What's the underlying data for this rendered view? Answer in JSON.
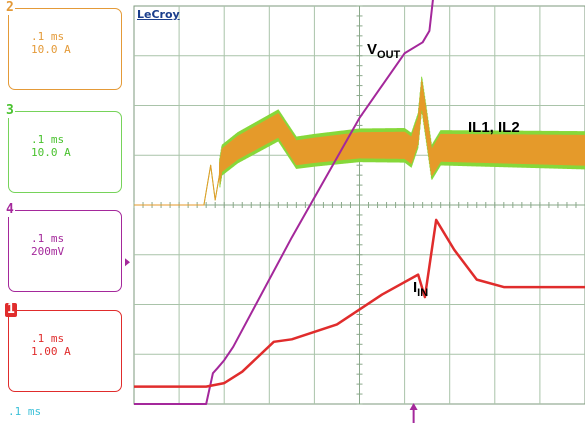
{
  "brand": "LeCroy",
  "channels": [
    {
      "id": "ch2",
      "number": "2",
      "timebase": ".1 ms",
      "scale": "10.0 A",
      "color": "#e49a38"
    },
    {
      "id": "ch3",
      "number": "3",
      "timebase": ".1 ms",
      "scale": "10.0 A",
      "color": "#76d35a"
    },
    {
      "id": "ch4",
      "number": "4",
      "timebase": ".1 ms",
      "scale": "200mV",
      "color": "#a4289b"
    },
    {
      "id": "ch1",
      "number": "1",
      "timebase": ".1 ms",
      "scale": "1.00 A",
      "color": "#e02c2c"
    }
  ],
  "bottom_timebase": ".1 ms",
  "chart_data": {
    "type": "line",
    "title": "",
    "grid": true,
    "x_divisions": 10,
    "y_divisions": 8,
    "annotations": [
      {
        "main": "V",
        "sub": "OUT",
        "series": "vout"
      },
      {
        "main": "IL1, IL2",
        "sub": "",
        "series": "il"
      },
      {
        "main": "I",
        "sub": "IN",
        "series": "iin"
      }
    ],
    "series": [
      {
        "id": "vout",
        "color": "#a4289b",
        "x": [
          0,
          0.8,
          1.6,
          1.75,
          1.85,
          2.0,
          2.2,
          3.5,
          5.0,
          6.0,
          6.4,
          6.55,
          6.7,
          10
        ],
        "y": [
          0.0,
          0.0,
          0.0,
          0.62,
          0.72,
          0.88,
          1.15,
          3.35,
          5.75,
          7.05,
          7.27,
          7.5,
          8.7,
          8.7
        ]
      },
      {
        "id": "iin",
        "color": "#e02c2c",
        "x": [
          0,
          1.6,
          2.0,
          2.4,
          3.1,
          3.5,
          4.5,
          5.5,
          6.3,
          6.45,
          6.7,
          7.1,
          7.6,
          8.2,
          10
        ],
        "y": [
          0.35,
          0.35,
          0.42,
          0.65,
          1.25,
          1.3,
          1.6,
          2.2,
          2.6,
          2.15,
          3.7,
          3.1,
          2.5,
          2.35,
          2.35
        ]
      },
      {
        "id": "il",
        "color": "#e59a2a",
        "x": [
          0,
          1.55,
          1.7,
          1.8,
          1.95,
          2.3,
          3.2,
          3.6,
          4.0,
          5.0,
          6.0,
          6.15,
          6.3,
          6.38,
          6.5,
          6.6,
          6.8,
          10
        ],
        "y": [
          4.0,
          4.0,
          4.8,
          4.1,
          4.9,
          5.15,
          5.6,
          5.05,
          5.1,
          5.2,
          5.2,
          5.1,
          5.5,
          6.25,
          5.5,
          4.85,
          5.15,
          5.1
        ],
        "ripple_start": 1.9,
        "ripple_amp": 0.45,
        "ripple_end_amp": 0.6
      },
      {
        "id": "il2_trace",
        "color": "#86d83a",
        "x": [
          0,
          1.55,
          1.7,
          1.8,
          1.95,
          2.3,
          3.2,
          3.6,
          4.0,
          5.0,
          6.0,
          6.15,
          6.3,
          6.38,
          6.5,
          6.6,
          6.8,
          10
        ],
        "y": [
          4.0,
          4.0,
          4.8,
          4.1,
          4.9,
          5.15,
          5.6,
          5.05,
          5.1,
          5.2,
          5.2,
          5.1,
          5.5,
          6.25,
          5.5,
          4.85,
          5.15,
          5.1
        ],
        "ripple_start": 1.9,
        "ripple_amp": 0.6,
        "ripple_end_amp": 0.75
      }
    ],
    "markers": {
      "trigger_x": 6.2,
      "offset_y": 2.85
    }
  }
}
